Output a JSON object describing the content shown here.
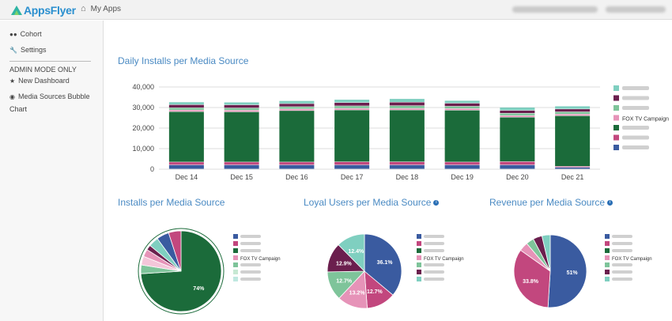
{
  "app": {
    "logo_text": "AppsFlyer",
    "nav_my_apps": "My Apps"
  },
  "sidebar": {
    "items": [
      {
        "label": "Cohort",
        "icon": "users-icon"
      },
      {
        "label": "Settings",
        "icon": "wrench-icon"
      }
    ],
    "admin_header": "ADMIN MODE ONLY",
    "admin_items": [
      {
        "label": "New Dashboard",
        "icon": "star-icon"
      },
      {
        "label": "Media Sources Bubble",
        "icon": "circle-dot-icon"
      },
      {
        "label": "Chart",
        "icon": ""
      }
    ]
  },
  "colors": {
    "dark_blue": "#3a5ba0",
    "magenta": "#c2477e",
    "dark_green": "#1b6b3a",
    "pink": "#e693b8",
    "green": "#7ec49a",
    "purple": "#6b1f4e",
    "teal": "#7fcfc0",
    "light_pink": "#f3c6d9",
    "light_green": "#c7e8d3",
    "mint": "#bfe8e0"
  },
  "titles": {
    "daily": "Daily Installs per Media Source",
    "installs": "Installs per Media Source",
    "loyal": "Loyal Users per Media Source",
    "revenue": "Revenue per Media Source"
  },
  "chart_data": [
    {
      "type": "bar",
      "stacked": true,
      "title": "Daily Installs per Media Source",
      "categories": [
        "Dec 14",
        "Dec 15",
        "Dec 16",
        "Dec 17",
        "Dec 18",
        "Dec 19",
        "Dec 20",
        "Dec 21"
      ],
      "ylim": [
        0,
        40000
      ],
      "yticks": [
        "0",
        "10,000",
        "20,000",
        "30,000",
        "40,000"
      ],
      "grid": true,
      "legend_position": "right",
      "series": [
        {
          "color": "#3a5ba0",
          "values": [
            2000,
            2000,
            2000,
            2000,
            2000,
            2000,
            2000,
            800
          ]
        },
        {
          "color": "#c2477e",
          "values": [
            1400,
            1400,
            1400,
            1500,
            1500,
            1400,
            1600,
            500
          ]
        },
        {
          "color": "#1b6b3a",
          "values": [
            24500,
            24400,
            25000,
            25200,
            25200,
            25200,
            21600,
            24600
          ]
        },
        {
          "name": "FOX TV Campaign",
          "color": "#e693b8",
          "values": [
            800,
            800,
            800,
            800,
            800,
            800,
            800,
            800
          ]
        },
        {
          "color": "#7ec49a",
          "values": [
            1100,
            1100,
            1100,
            1200,
            1300,
            1100,
            1100,
            1100
          ]
        },
        {
          "color": "#6b1f4e",
          "values": [
            1500,
            1500,
            1500,
            1600,
            1700,
            1500,
            1400,
            1400
          ]
        },
        {
          "color": "#7fcfc0",
          "values": [
            1300,
            1300,
            1400,
            1500,
            1700,
            1300,
            1500,
            1400
          ]
        }
      ]
    },
    {
      "type": "pie",
      "title": "Installs per Media Source",
      "slices": [
        {
          "value": 74,
          "color": "#1b6b3a",
          "label": "74%"
        },
        {
          "value": 3.5,
          "color": "#7ec49a",
          "label": ""
        },
        {
          "value": 3.5,
          "color": "#f3c6d9",
          "label": ""
        },
        {
          "value": 3,
          "color": "#e693b8",
          "label": ""
        },
        {
          "value": 2,
          "color": "#6b1f4e",
          "label": ""
        },
        {
          "value": 4,
          "color": "#7fcfc0",
          "label": ""
        },
        {
          "value": 5,
          "color": "#3a5ba0",
          "label": ""
        },
        {
          "value": 5,
          "color": "#c2477e",
          "label": ""
        }
      ],
      "legend": [
        {
          "color": "#3a5ba0",
          "label": ""
        },
        {
          "color": "#c2477e",
          "label": ""
        },
        {
          "color": "#1b6b3a",
          "label": ""
        },
        {
          "color": "#e693b8",
          "label": "FOX TV Campaign"
        },
        {
          "color": "#7ec49a",
          "label": ""
        },
        {
          "color": "#c7e8d3",
          "label": ""
        },
        {
          "color": "#bfe8e0",
          "label": ""
        }
      ]
    },
    {
      "type": "pie",
      "title": "Loyal Users per Media Source",
      "slices": [
        {
          "value": 36.1,
          "color": "#3a5ba0",
          "label": "36.1%"
        },
        {
          "value": 12.7,
          "color": "#c2477e",
          "label": "12.7%"
        },
        {
          "value": 13.2,
          "color": "#e693b8",
          "label": "13.2%"
        },
        {
          "value": 12.7,
          "color": "#7ec49a",
          "label": "12.7%"
        },
        {
          "value": 12.9,
          "color": "#6b1f4e",
          "label": "12.9%"
        },
        {
          "value": 12.4,
          "color": "#7fcfc0",
          "label": "12.4%"
        }
      ],
      "legend": [
        {
          "color": "#3a5ba0",
          "label": ""
        },
        {
          "color": "#c2477e",
          "label": ""
        },
        {
          "color": "#1b6b3a",
          "label": ""
        },
        {
          "color": "#e693b8",
          "label": "FOX TV Campaign"
        },
        {
          "color": "#7ec49a",
          "label": ""
        },
        {
          "color": "#6b1f4e",
          "label": ""
        },
        {
          "color": "#7fcfc0",
          "label": ""
        }
      ]
    },
    {
      "type": "pie",
      "title": "Revenue per Media Source",
      "slices": [
        {
          "value": 51,
          "color": "#3a5ba0",
          "label": "51%"
        },
        {
          "value": 33.8,
          "color": "#c2477e",
          "label": "33.8%"
        },
        {
          "value": 4,
          "color": "#e693b8",
          "label": ""
        },
        {
          "value": 3.5,
          "color": "#7ec49a",
          "label": ""
        },
        {
          "value": 4,
          "color": "#6b1f4e",
          "label": ""
        },
        {
          "value": 3.7,
          "color": "#7fcfc0",
          "label": ""
        }
      ],
      "legend": [
        {
          "color": "#3a5ba0",
          "label": ""
        },
        {
          "color": "#c2477e",
          "label": ""
        },
        {
          "color": "#1b6b3a",
          "label": ""
        },
        {
          "color": "#e693b8",
          "label": "FOX TV Campaign"
        },
        {
          "color": "#7ec49a",
          "label": ""
        },
        {
          "color": "#6b1f4e",
          "label": ""
        },
        {
          "color": "#7fcfc0",
          "label": ""
        }
      ]
    }
  ]
}
